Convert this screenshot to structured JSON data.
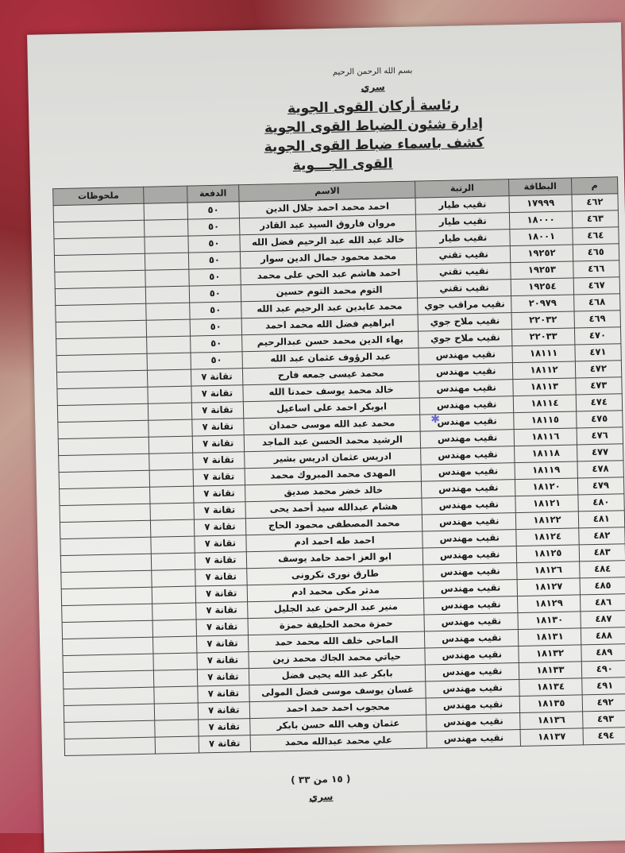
{
  "header": {
    "basmala": "بسم الله الرحمن الرحيم",
    "classification": "سري",
    "line1": "رئاسة أركان القوى الجوية",
    "line2": "إدارة شئون الضباط القوى الجوية",
    "line3": "كشف باسماء ضباط القوى الجوية",
    "line4": "القوى الجـــوية"
  },
  "table": {
    "columns": {
      "no": "م",
      "card": "البطاقة",
      "rank": "الرتبة",
      "name": "الاسم",
      "batch": "الدفعة",
      "notes": "ملحوظات"
    },
    "rows": [
      {
        "no": "٤٦٢",
        "card": "١٧٩٩٩",
        "rank": "نقيب طيار",
        "name": "احمد محمد احمد جلال الدين",
        "batch": "٥٠"
      },
      {
        "no": "٤٦٣",
        "card": "١٨٠٠٠",
        "rank": "نقيب طيار",
        "name": "مروان فاروق السيد عبد القادر",
        "batch": "٥٠"
      },
      {
        "no": "٤٦٤",
        "card": "١٨٠٠١",
        "rank": "نقيب طيار",
        "name": "خالد عبد الله عبد الرحيم فضل الله",
        "batch": "٥٠"
      },
      {
        "no": "٤٦٥",
        "card": "١٩٢٥٢",
        "rank": "نقيب تقني",
        "name": "محمد محمود جمال الدين سوار",
        "batch": "٥٠"
      },
      {
        "no": "٤٦٦",
        "card": "١٩٢٥٣",
        "rank": "نقيب تقني",
        "name": "احمد هاشم عبد الحي على محمد",
        "batch": "٥٠"
      },
      {
        "no": "٤٦٧",
        "card": "١٩٢٥٤",
        "rank": "نقيب تقني",
        "name": "التوم محمد التوم حسين",
        "batch": "٥٠"
      },
      {
        "no": "٤٦٨",
        "card": "٢٠٩٧٩",
        "rank": "نقيب مراقب جوي",
        "name": "محمد عابدين عبد الرحيم عبد الله",
        "batch": "٥٠"
      },
      {
        "no": "٤٦٩",
        "card": "٢٢٠٣٢",
        "rank": "نقيب ملاح جوي",
        "name": "ابراهيم فضل الله محمد احمد",
        "batch": "٥٠"
      },
      {
        "no": "٤٧٠",
        "card": "٢٢٠٣٣",
        "rank": "نقيب ملاح جوي",
        "name": "بهاء الدين محمد حسن عبدالرحيم",
        "batch": "٥٠"
      },
      {
        "no": "٤٧١",
        "card": "١٨١١١",
        "rank": "نقيب مهندس",
        "name": "عبد الرؤوف عثمان عبد الله",
        "batch": "٥٠"
      },
      {
        "no": "٤٧٢",
        "card": "١٨١١٢",
        "rank": "نقيب مهندس",
        "name": "محمد عيسى جمعه فارح",
        "batch": "تقانة ٧"
      },
      {
        "no": "٤٧٣",
        "card": "١٨١١٣",
        "rank": "نقيب مهندس",
        "name": "خالد محمد يوسف حمدنا الله",
        "batch": "تقانة ٧"
      },
      {
        "no": "٤٧٤",
        "card": "١٨١١٤",
        "rank": "نقيب مهندس",
        "name": "ابوبكر احمد على اساعيل",
        "batch": "تقانة ٧"
      },
      {
        "no": "٤٧٥",
        "card": "١٨١١٥",
        "rank": "نقيب مهندس",
        "name": "محمد عبد الله موسى حمدان",
        "batch": "تقانة ٧"
      },
      {
        "no": "٤٧٦",
        "card": "١٨١١٦",
        "rank": "نقيب مهندس",
        "name": "الرشيد محمد الحسن عبد الماجد",
        "batch": "تقانة ٧"
      },
      {
        "no": "٤٧٧",
        "card": "١٨١١٨",
        "rank": "نقيب مهندس",
        "name": "ادريس عثمان ادريس بشير",
        "batch": "تقانة ٧"
      },
      {
        "no": "٤٧٨",
        "card": "١٨١١٩",
        "rank": "نقيب مهندس",
        "name": "المهدى محمد المبروك محمد",
        "batch": "تقانة ٧"
      },
      {
        "no": "٤٧٩",
        "card": "١٨١٢٠",
        "rank": "نقيب مهندس",
        "name": "خالد خضر محمد صديق",
        "batch": "تقانة ٧"
      },
      {
        "no": "٤٨٠",
        "card": "١٨١٢١",
        "rank": "نقيب مهندس",
        "name": "هشام عبدالله سيد أحمد يحى",
        "batch": "تقانة ٧"
      },
      {
        "no": "٤٨١",
        "card": "١٨١٢٢",
        "rank": "نقيب مهندس",
        "name": "محمد المصطفى محمود الحاج",
        "batch": "تقانة ٧"
      },
      {
        "no": "٤٨٢",
        "card": "١٨١٢٤",
        "rank": "نقيب مهندس",
        "name": "احمد طه احمد ادم",
        "batch": "تقانة ٧"
      },
      {
        "no": "٤٨٣",
        "card": "١٨١٢٥",
        "rank": "نقيب مهندس",
        "name": "ابو العز احمد حامد يوسف",
        "batch": "تقانة ٧"
      },
      {
        "no": "٤٨٤",
        "card": "١٨١٢٦",
        "rank": "نقيب مهندس",
        "name": "طارق نورى تكرونى",
        "batch": "تقانة ٧"
      },
      {
        "no": "٤٨٥",
        "card": "١٨١٢٧",
        "rank": "نقيب مهندس",
        "name": "مدثر مكى محمد ادم",
        "batch": "تقانة ٧"
      },
      {
        "no": "٤٨٦",
        "card": "١٨١٢٩",
        "rank": "نقيب مهندس",
        "name": "منير عبد الرحمن عبد الجليل",
        "batch": "تقانة ٧"
      },
      {
        "no": "٤٨٧",
        "card": "١٨١٣٠",
        "rank": "نقيب مهندس",
        "name": "حمزة محمد الخليفة حمزة",
        "batch": "تقانة ٧"
      },
      {
        "no": "٤٨٨",
        "card": "١٨١٣١",
        "rank": "نقيب مهندس",
        "name": "الماحى خلف الله محمد حمد",
        "batch": "تقانة ٧"
      },
      {
        "no": "٤٨٩",
        "card": "١٨١٣٢",
        "rank": "نقيب مهندس",
        "name": "حياتي محمد الجاك محمد زين",
        "batch": "تقانة ٧"
      },
      {
        "no": "٤٩٠",
        "card": "١٨١٣٣",
        "rank": "نقيب مهندس",
        "name": "بابكر عبد الله يحيى فضل",
        "batch": "تقانة ٧"
      },
      {
        "no": "٤٩١",
        "card": "١٨١٣٤",
        "rank": "نقيب مهندس",
        "name": "غسان يوسف موسى فضل المولى",
        "batch": "تقانة ٧"
      },
      {
        "no": "٤٩٢",
        "card": "١٨١٣٥",
        "rank": "نقيب مهندس",
        "name": "محجوب احمد حمد احمد",
        "batch": "تقانة ٧"
      },
      {
        "no": "٤٩٣",
        "card": "١٨١٣٦",
        "rank": "نقيب مهندس",
        "name": "عثمان وهب الله حسن بابكر",
        "batch": "تقانة ٧"
      },
      {
        "no": "٤٩٤",
        "card": "١٨١٣٧",
        "rank": "نقيب مهندس",
        "name": "علي محمد عبدالله محمد",
        "batch": "تقانة ٧"
      }
    ]
  },
  "footer": {
    "page": "( ١٥ من ٣٣ )",
    "classification": "سري"
  }
}
